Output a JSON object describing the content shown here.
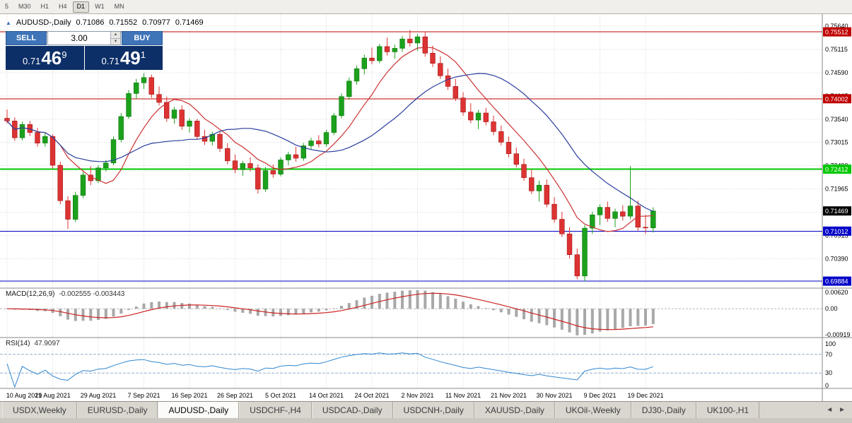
{
  "toolbar": {
    "timeframes": [
      "5",
      "M30",
      "H1",
      "H4",
      "D1",
      "W1",
      "MN"
    ],
    "active_timeframe": "D1"
  },
  "header": {
    "toggle_icon": "▲",
    "symbol": "AUDUSD-,Daily",
    "open": "0.71086",
    "high": "0.71552",
    "low": "0.70977",
    "close": "0.71469"
  },
  "trade_panel": {
    "sell_label": "SELL",
    "buy_label": "BUY",
    "volume": "3.00",
    "spin_up": "▲",
    "spin_down": "▼",
    "sell_price": {
      "prefix": "0.71",
      "big": "46",
      "sup": "9"
    },
    "buy_price": {
      "prefix": "0.71",
      "big": "49",
      "sup": "1"
    }
  },
  "tabs": {
    "items": [
      "USDX,Weekly",
      "EURUSD-,Daily",
      "AUDUSD-,Daily",
      "USDCHF-,H4",
      "USDCAD-,Daily",
      "USDCNH-,Daily",
      "XAUUSD-,Daily",
      "UKOil-,Weekly",
      "DJ30-,Daily",
      "UK100-,H1"
    ],
    "active": "AUDUSD-,Daily",
    "scroll_left": "◄",
    "scroll_right": "►"
  },
  "chart_data": {
    "type": "candlestick",
    "title": "AUDUSD-,Daily",
    "ylim": [
      0.69726,
      0.75912
    ],
    "label_every": 6,
    "date_labels": [
      "10 Aug 2021",
      "19 Aug 2021",
      "29 Aug 2021",
      "7 Sep 2021",
      "16 Sep 2021",
      "26 Sep 2021",
      "5 Oct 2021",
      "14 Oct 2021",
      "24 Oct 2021",
      "2 Nov 2021",
      "11 Nov 2021",
      "21 Nov 2021",
      "30 Nov 2021",
      "9 Dec 2021",
      "19 Dec 2021"
    ],
    "y_ticks": [
      0.7564,
      0.75115,
      0.7459,
      0.74065,
      0.7354,
      0.73015,
      0.7249,
      0.71965,
      0.7144,
      0.70915,
      0.7039,
      0.69865
    ],
    "levels": [
      {
        "price": 0.75512,
        "label": "0.75512",
        "color": "#c00000",
        "width": 1
      },
      {
        "price": 0.74002,
        "label": "0.74002",
        "color": "#c00000",
        "width": 1
      },
      {
        "price": 0.72412,
        "label": "0.72412",
        "color": "#00c800",
        "width": 2
      },
      {
        "price": 0.71012,
        "label": "0.71012",
        "color": "#0000c8",
        "width": 1
      },
      {
        "price": 0.69884,
        "label": "0.69884",
        "color": "#0000c8",
        "width": 1
      }
    ],
    "current_price": {
      "value": 0.71469,
      "label": "0.71469",
      "color": "#000000"
    },
    "overlays": [
      {
        "name": "ma-fast-red",
        "type": "sma",
        "period": 8,
        "color": "#cc3333"
      },
      {
        "name": "ma-slow-blue",
        "type": "sma",
        "period": 20,
        "color": "#2b3f9e"
      }
    ],
    "up_color": "#1ca11c",
    "down_color": "#dd3333",
    "candles": [
      [
        0.7356,
        0.7376,
        0.7344,
        0.735
      ],
      [
        0.735,
        0.7358,
        0.7305,
        0.7312
      ],
      [
        0.7312,
        0.7348,
        0.7306,
        0.7342
      ],
      [
        0.7342,
        0.735,
        0.7316,
        0.7324
      ],
      [
        0.7324,
        0.7334,
        0.7292,
        0.73
      ],
      [
        0.73,
        0.7322,
        0.7292,
        0.7315
      ],
      [
        0.7315,
        0.732,
        0.7242,
        0.725
      ],
      [
        0.725,
        0.7258,
        0.7162,
        0.717
      ],
      [
        0.717,
        0.718,
        0.7106,
        0.7128
      ],
      [
        0.7128,
        0.719,
        0.7122,
        0.7182
      ],
      [
        0.7182,
        0.7235,
        0.7176,
        0.7228
      ],
      [
        0.7228,
        0.7248,
        0.7205,
        0.7215
      ],
      [
        0.7215,
        0.725,
        0.721,
        0.7244
      ],
      [
        0.7244,
        0.7262,
        0.7236,
        0.7255
      ],
      [
        0.7255,
        0.7315,
        0.725,
        0.7308
      ],
      [
        0.7308,
        0.7368,
        0.7302,
        0.736
      ],
      [
        0.736,
        0.742,
        0.7355,
        0.7412
      ],
      [
        0.7412,
        0.7445,
        0.74,
        0.7436
      ],
      [
        0.7436,
        0.7458,
        0.7422,
        0.7448
      ],
      [
        0.7448,
        0.7455,
        0.7402,
        0.741
      ],
      [
        0.741,
        0.7428,
        0.7385,
        0.7392
      ],
      [
        0.7392,
        0.7405,
        0.7348,
        0.7356
      ],
      [
        0.7356,
        0.7382,
        0.7344,
        0.7375
      ],
      [
        0.7375,
        0.7385,
        0.733,
        0.7338
      ],
      [
        0.7338,
        0.7356,
        0.7324,
        0.735
      ],
      [
        0.735,
        0.7355,
        0.7308,
        0.7315
      ],
      [
        0.7315,
        0.733,
        0.7296,
        0.7304
      ],
      [
        0.7304,
        0.7326,
        0.7295,
        0.732
      ],
      [
        0.732,
        0.7326,
        0.728,
        0.7288
      ],
      [
        0.7288,
        0.73,
        0.7252,
        0.726
      ],
      [
        0.726,
        0.7274,
        0.7232,
        0.724
      ],
      [
        0.724,
        0.726,
        0.7226,
        0.7254
      ],
      [
        0.7254,
        0.7268,
        0.7236,
        0.7244
      ],
      [
        0.7244,
        0.7252,
        0.7186,
        0.7196
      ],
      [
        0.7196,
        0.7246,
        0.719,
        0.7238
      ],
      [
        0.7238,
        0.7252,
        0.7222,
        0.723
      ],
      [
        0.723,
        0.7268,
        0.7225,
        0.7262
      ],
      [
        0.7262,
        0.728,
        0.725,
        0.7274
      ],
      [
        0.7274,
        0.7292,
        0.7258,
        0.7266
      ],
      [
        0.7266,
        0.73,
        0.726,
        0.7294
      ],
      [
        0.7294,
        0.7312,
        0.7285,
        0.7305
      ],
      [
        0.7305,
        0.7318,
        0.729,
        0.7298
      ],
      [
        0.7298,
        0.733,
        0.7292,
        0.7324
      ],
      [
        0.7324,
        0.7368,
        0.7318,
        0.7362
      ],
      [
        0.7362,
        0.7412,
        0.7356,
        0.7405
      ],
      [
        0.7405,
        0.7448,
        0.7398,
        0.744
      ],
      [
        0.744,
        0.7475,
        0.7432,
        0.7468
      ],
      [
        0.7468,
        0.75,
        0.7455,
        0.7492
      ],
      [
        0.7492,
        0.7516,
        0.7478,
        0.7486
      ],
      [
        0.7486,
        0.7524,
        0.748,
        0.7518
      ],
      [
        0.7518,
        0.7538,
        0.7498,
        0.7506
      ],
      [
        0.7506,
        0.7522,
        0.749,
        0.7514
      ],
      [
        0.7514,
        0.7542,
        0.7506,
        0.7535
      ],
      [
        0.7535,
        0.7555,
        0.7518,
        0.7526
      ],
      [
        0.7526,
        0.7546,
        0.7508,
        0.754
      ],
      [
        0.754,
        0.755,
        0.7495,
        0.7503
      ],
      [
        0.7503,
        0.752,
        0.7472,
        0.748
      ],
      [
        0.748,
        0.7496,
        0.7445,
        0.7452
      ],
      [
        0.7452,
        0.7468,
        0.742,
        0.7428
      ],
      [
        0.7428,
        0.7445,
        0.7395,
        0.7402
      ],
      [
        0.7402,
        0.7415,
        0.7362,
        0.737
      ],
      [
        0.737,
        0.739,
        0.7345,
        0.7352
      ],
      [
        0.7352,
        0.7375,
        0.7332,
        0.7368
      ],
      [
        0.7368,
        0.738,
        0.734,
        0.7348
      ],
      [
        0.7348,
        0.7362,
        0.7318,
        0.7326
      ],
      [
        0.7326,
        0.734,
        0.7295,
        0.7302
      ],
      [
        0.7302,
        0.7315,
        0.7268,
        0.7276
      ],
      [
        0.7276,
        0.729,
        0.7245,
        0.7252
      ],
      [
        0.7252,
        0.7265,
        0.7215,
        0.7222
      ],
      [
        0.7222,
        0.724,
        0.7185,
        0.7192
      ],
      [
        0.7192,
        0.7215,
        0.7168,
        0.7205
      ],
      [
        0.7205,
        0.7218,
        0.7155,
        0.7162
      ],
      [
        0.7162,
        0.7178,
        0.712,
        0.7128
      ],
      [
        0.7128,
        0.7145,
        0.7088,
        0.7095
      ],
      [
        0.7095,
        0.711,
        0.704,
        0.7048
      ],
      [
        0.7048,
        0.7062,
        0.6993,
        0.7
      ],
      [
        0.7,
        0.7115,
        0.6988,
        0.7108
      ],
      [
        0.7108,
        0.7145,
        0.7095,
        0.7138
      ],
      [
        0.7138,
        0.7162,
        0.7115,
        0.7155
      ],
      [
        0.7155,
        0.7168,
        0.7122,
        0.713
      ],
      [
        0.713,
        0.7152,
        0.711,
        0.7145
      ],
      [
        0.7145,
        0.716,
        0.7125,
        0.7135
      ],
      [
        0.7135,
        0.7248,
        0.7128,
        0.7158
      ],
      [
        0.7158,
        0.717,
        0.7102,
        0.711
      ],
      [
        0.711,
        0.7138,
        0.7095,
        0.7109
      ],
      [
        0.71086,
        0.71552,
        0.70977,
        0.71469
      ]
    ],
    "indicators": [
      {
        "name": "MACD",
        "display_label": "MACD(12,26,9)",
        "display_values": "-0.002555 -0.003443",
        "periods": [
          12,
          26,
          9
        ],
        "histogram_color": "#a8a8a8",
        "signal_color": "#cc2222",
        "axis_labels": [
          "0.00620",
          "0.00",
          "-0.00919"
        ]
      },
      {
        "name": "RSI",
        "display_label": "RSI(14)",
        "display_value": "47.9097",
        "period": 14,
        "line_color": "#2f86d0",
        "level_lines": [
          70,
          30
        ],
        "axis_labels": [
          "100",
          "70",
          "30",
          "0"
        ]
      }
    ]
  }
}
